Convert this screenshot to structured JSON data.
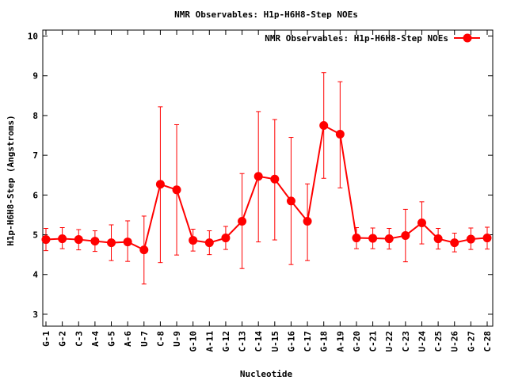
{
  "chart_data": {
    "type": "line",
    "title": "NMR Observables: H1p-H6H8-Step NOEs",
    "xlabel": "Nucleotide",
    "ylabel": "H1p-H6H8-Step (Angstroms)",
    "ylim": [
      2.7,
      10.15
    ],
    "yticks": [
      3,
      4,
      5,
      6,
      7,
      8,
      9,
      10
    ],
    "legend_position": "top-right",
    "grid": false,
    "series_color": "#ff0000",
    "categories": [
      "G-1",
      "G-2",
      "C-3",
      "A-4",
      "G-5",
      "A-6",
      "U-7",
      "C-8",
      "U-9",
      "G-10",
      "A-11",
      "G-12",
      "C-13",
      "C-14",
      "U-15",
      "G-16",
      "C-17",
      "G-18",
      "A-19",
      "G-20",
      "C-21",
      "U-22",
      "C-23",
      "U-24",
      "C-25",
      "U-26",
      "G-27",
      "C-28"
    ],
    "series": [
      {
        "name": "NMR Observables: H1p-H6H8-Step NOEs",
        "values": [
          4.88,
          4.9,
          4.88,
          4.84,
          4.8,
          4.82,
          4.62,
          6.27,
          6.13,
          4.86,
          4.8,
          4.92,
          5.34,
          6.47,
          6.4,
          5.85,
          5.34,
          7.75,
          7.53,
          4.92,
          4.91,
          4.9,
          4.98,
          5.3,
          4.9,
          4.8,
          4.89,
          4.92
        ],
        "err_low": [
          4.6,
          4.65,
          4.62,
          4.58,
          4.35,
          4.33,
          3.76,
          4.3,
          4.49,
          4.59,
          4.5,
          4.63,
          4.15,
          4.82,
          4.87,
          4.25,
          4.35,
          6.42,
          6.18,
          4.65,
          4.65,
          4.64,
          4.32,
          4.77,
          4.64,
          4.57,
          4.63,
          4.64
        ],
        "err_high": [
          5.16,
          5.18,
          5.13,
          5.1,
          5.25,
          5.35,
          5.47,
          8.22,
          7.77,
          5.14,
          5.1,
          5.21,
          6.54,
          8.1,
          7.9,
          7.45,
          6.28,
          9.08,
          8.85,
          5.18,
          5.17,
          5.16,
          5.64,
          5.83,
          5.16,
          5.04,
          5.17,
          5.19
        ]
      }
    ]
  }
}
